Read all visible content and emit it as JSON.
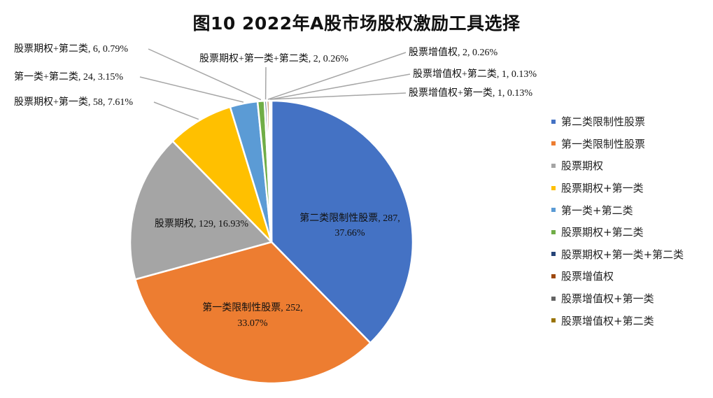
{
  "chart_data": {
    "type": "pie",
    "title": "图10  2022年A股市场股权激励工具选择",
    "slices": [
      {
        "name": "第二类限制性股票",
        "value": 287,
        "percent": "37.66%",
        "color": "#4472C4"
      },
      {
        "name": "第一类限制性股票",
        "value": 252,
        "percent": "33.07%",
        "color": "#ED7D31"
      },
      {
        "name": "股票期权",
        "value": 129,
        "percent": "16.93%",
        "color": "#A5A5A5"
      },
      {
        "name": "股票期权+第一类",
        "value": 58,
        "percent": "7.61%",
        "color": "#FFC000"
      },
      {
        "name": "第一类+第二类",
        "value": 24,
        "percent": "3.15%",
        "color": "#5B9BD5"
      },
      {
        "name": "股票期权+第二类",
        "value": 6,
        "percent": "0.79%",
        "color": "#70AD47"
      },
      {
        "name": "股票期权+第一类+第二类",
        "value": 2,
        "percent": "0.26%",
        "color": "#264478"
      },
      {
        "name": "股票增值权",
        "value": 2,
        "percent": "0.26%",
        "color": "#9E480E"
      },
      {
        "name": "股票增值权+第一类",
        "value": 1,
        "percent": "0.13%",
        "color": "#636363"
      },
      {
        "name": "股票增值权+第二类",
        "value": 1,
        "percent": "0.13%",
        "color": "#997300"
      }
    ],
    "data_labels": [
      "第二类限制性股票, 287,",
      "37.66%",
      "第一类限制性股票, 252,",
      "33.07%",
      "股票期权, 129, 16.93%",
      "股票期权+第一类, 58, 7.61%",
      "第一类+第二类, 24, 3.15%",
      "股票期权+第二类, 6, 0.79%",
      "股票期权+第一类+第二类, 2, 0.26%",
      "股票增值权, 2, 0.26%",
      "股票增值权+第二类, 1, 0.13%",
      "股票增值权+第一类, 1, 0.13%"
    ],
    "legend_position": "right"
  }
}
